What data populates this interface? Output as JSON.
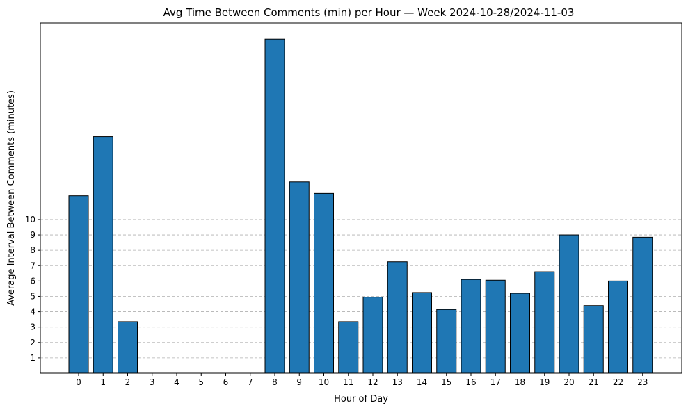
{
  "chart_data": {
    "type": "bar",
    "title": "Avg Time Between Comments (min) per Hour — Week 2024-10-28/2024-11-03",
    "xlabel": "Hour of Day",
    "ylabel": "Average Interval Between Comments (minutes)",
    "categories": [
      "0",
      "1",
      "2",
      "3",
      "4",
      "5",
      "6",
      "7",
      "8",
      "9",
      "10",
      "11",
      "12",
      "13",
      "14",
      "15",
      "16",
      "17",
      "18",
      "19",
      "20",
      "21",
      "22",
      "23"
    ],
    "values": [
      11.55,
      15.4,
      3.35,
      0,
      0,
      0,
      0,
      0,
      21.75,
      12.45,
      11.7,
      3.35,
      4.95,
      7.25,
      5.25,
      4.15,
      6.1,
      6.05,
      5.2,
      6.6,
      9.0,
      4.4,
      6.0,
      8.85
    ],
    "ylim": [
      0,
      22.8
    ],
    "yticks": [
      1,
      2,
      3,
      4,
      5,
      6,
      7,
      8,
      9,
      10
    ],
    "grid": "y-dashed",
    "colors": {
      "bar": "#1f77b4",
      "edge": "#000000",
      "grid": "#b0b0b0"
    }
  }
}
